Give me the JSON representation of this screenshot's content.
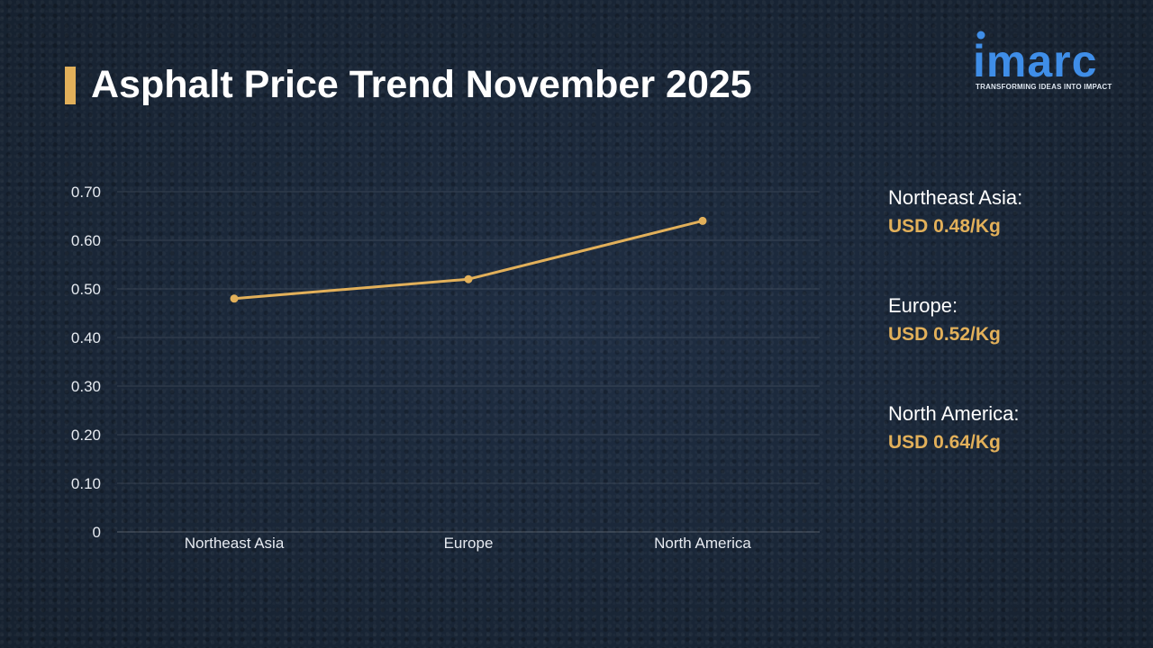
{
  "header": {
    "title": "Asphalt Price Trend November 2025"
  },
  "logo": {
    "name": "imarc",
    "tagline": "TRANSFORMING IDEAS INTO IMPACT",
    "color": "#3f8ee8"
  },
  "colors": {
    "accent": "#e2b05a",
    "background": "#1c2a3d"
  },
  "chart_data": {
    "type": "line",
    "categories": [
      "Northeast Asia",
      "Europe",
      "North America"
    ],
    "values": [
      0.48,
      0.52,
      0.64
    ],
    "title": "",
    "xlabel": "",
    "ylabel": "",
    "ylim": [
      0,
      0.7
    ],
    "yticks": [
      0,
      0.1,
      0.2,
      0.3,
      0.4,
      0.5,
      0.6,
      0.7
    ],
    "ytick_labels": [
      "0",
      "0.10",
      "0.20",
      "0.30",
      "0.40",
      "0.50",
      "0.60",
      "0.70"
    ],
    "grid": true,
    "line_color": "#e2b05a"
  },
  "side_panel": {
    "items": [
      {
        "region": "Northeast Asia:",
        "price": "USD 0.48/Kg"
      },
      {
        "region": "Europe:",
        "price": "USD 0.52/Kg"
      },
      {
        "region": "North America:",
        "price": "USD 0.64/Kg"
      }
    ]
  }
}
